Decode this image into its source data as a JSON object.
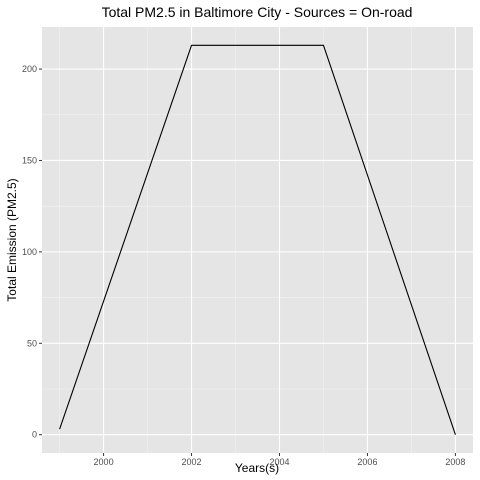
{
  "chart_data": {
    "type": "line",
    "title": "Total PM2.5 in Baltimore City - Sources = On-road",
    "xlabel": "Years(s)",
    "ylabel": "Total Emission (PM2.5)",
    "xlim": [
      1998.6,
      2008.4
    ],
    "ylim": [
      -10,
      223
    ],
    "x_ticks": [
      2000,
      2002,
      2004,
      2006,
      2008
    ],
    "x_tick_labels": [
      "2000",
      "2002",
      "2004",
      "2006",
      "2008"
    ],
    "y_ticks": [
      0,
      50,
      100,
      150,
      200
    ],
    "y_tick_labels": [
      "0",
      "50",
      "100",
      "150",
      "200"
    ],
    "grid": true,
    "series": [
      {
        "x": [
          1999,
          2002,
          2005,
          2008
        ],
        "values": [
          3,
          213,
          213,
          0
        ]
      }
    ],
    "colors": {
      "panel": "#e5e5e5",
      "grid_major": "#ffffff",
      "grid_minor": "#f2f2f2",
      "line": "#000000",
      "tick": "#333333"
    }
  }
}
